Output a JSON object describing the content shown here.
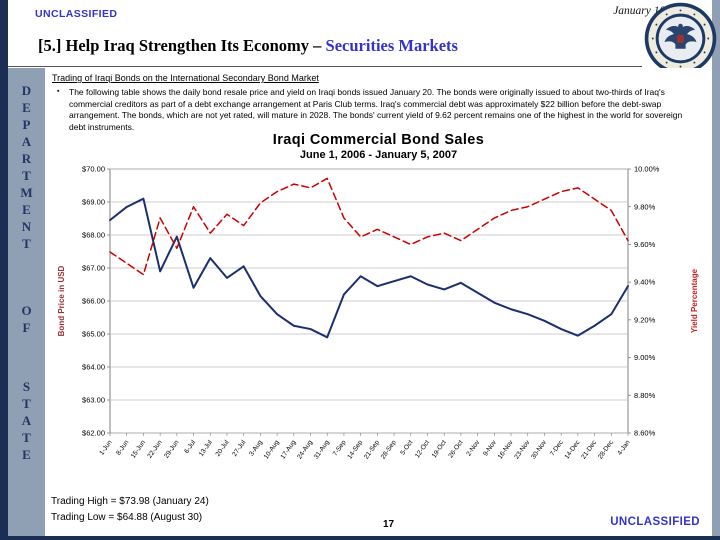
{
  "colors": {
    "classification_blue": "#3333cc",
    "frame_navy": "#1b2f55",
    "frame_blue_gray": "#8f9fb4",
    "sidebar_letter_navy": "#1f3864"
  },
  "header": {
    "classification": "UNCLASSIFIED",
    "date": "January 10, 2007",
    "title_main": "[5.] Help Iraq Strengthen Its Economy – ",
    "title_highlight": "Securities Markets"
  },
  "sidebar": {
    "letters": [
      "D",
      "E",
      "P",
      "A",
      "R",
      "T",
      "M",
      "E",
      "N",
      "T",
      "O",
      "F",
      "S",
      "T",
      "A",
      "T",
      "E"
    ]
  },
  "content": {
    "section_heading": "Trading of Iraqi Bonds on the International Secondary Bond Market",
    "bullet_marker": "▪",
    "bullet_text": "The following table shows the daily bond resale price and yield on Iraqi bonds issued January 20.  The bonds were originally issued to about two-thirds of Iraq's commercial creditors as part of a debt exchange arrangement at Paris Club terms.  Iraq's commercial debt was approximately $22 billion before the debt-swap arrangement.  The bonds, which are not yet rated, will mature in 2028.  The bonds' current yield of 9.62 percent remains one of the highest in the world for sovereign debt instruments.",
    "trading_high": "Trading High = $73.98 (January 24)",
    "trading_low": "Trading Low = $64.88 (August 30)"
  },
  "footer": {
    "page_number": "17",
    "classification": "UNCLASSIFIED"
  },
  "chart_data": {
    "type": "line",
    "title": "Iraqi Commercial Bond Sales",
    "subtitle": "June 1, 2006 - January 5, 2007",
    "grid": true,
    "legend": "none",
    "categories": [
      "1-Jun",
      "8-Jun",
      "15-Jun",
      "22-Jun",
      "29-Jun",
      "6-Jul",
      "13-Jul",
      "20-Jul",
      "27-Jul",
      "3-Aug",
      "10-Aug",
      "17-Aug",
      "24-Aug",
      "31-Aug",
      "7-Sep",
      "14-Sep",
      "21-Sep",
      "28-Sep",
      "5-Oct",
      "12-Oct",
      "19-Oct",
      "26-Oct",
      "2-Nov",
      "9-Nov",
      "16-Nov",
      "23-Nov",
      "30-Nov",
      "7-Dec",
      "14-Dec",
      "21-Dec",
      "28-Dec",
      "4-Jan"
    ],
    "price_axis": {
      "title": "Bond Price in USD",
      "title_color": "#993333",
      "range": [
        62,
        70
      ],
      "tick_values": [
        70,
        69,
        68,
        67,
        66,
        65,
        64,
        63,
        62
      ],
      "tick_labels": [
        "$70.00",
        "$69.00",
        "$68.00",
        "$67.00",
        "$66.00",
        "$65.00",
        "$64.00",
        "$63.00",
        "$62.00"
      ]
    },
    "yield_axis": {
      "title": "Yield Percentage",
      "title_color": "#cc2222",
      "range": [
        8.6,
        10.0
      ],
      "tick_values": [
        10.0,
        9.8,
        9.6,
        9.4,
        9.2,
        9.0,
        8.8,
        8.6
      ],
      "tick_labels": [
        "10.00%",
        "9.80%",
        "9.60%",
        "9.40%",
        "9.20%",
        "9.00%",
        "8.80%",
        "8.60%"
      ]
    },
    "series": [
      {
        "name": "Bond Price",
        "axis": "price",
        "color": "#1c2f6e",
        "style": "solid",
        "values": [
          68.45,
          68.85,
          69.1,
          66.9,
          67.95,
          66.4,
          67.3,
          66.7,
          67.05,
          66.15,
          65.6,
          65.25,
          65.15,
          64.9,
          66.2,
          66.75,
          66.45,
          66.6,
          66.75,
          66.5,
          66.35,
          66.55,
          66.25,
          65.95,
          65.75,
          65.6,
          65.4,
          65.15,
          64.95,
          65.25,
          65.6,
          66.45
        ]
      },
      {
        "name": "Yield",
        "axis": "yield",
        "color": "#cc0000",
        "style": "dashed",
        "values": [
          9.56,
          9.5,
          9.44,
          9.74,
          9.58,
          9.8,
          9.66,
          9.76,
          9.7,
          9.82,
          9.88,
          9.92,
          9.9,
          9.95,
          9.74,
          9.64,
          9.68,
          9.64,
          9.6,
          9.64,
          9.66,
          9.62,
          9.68,
          9.74,
          9.78,
          9.8,
          9.84,
          9.88,
          9.9,
          9.84,
          9.78,
          9.62
        ]
      }
    ]
  }
}
